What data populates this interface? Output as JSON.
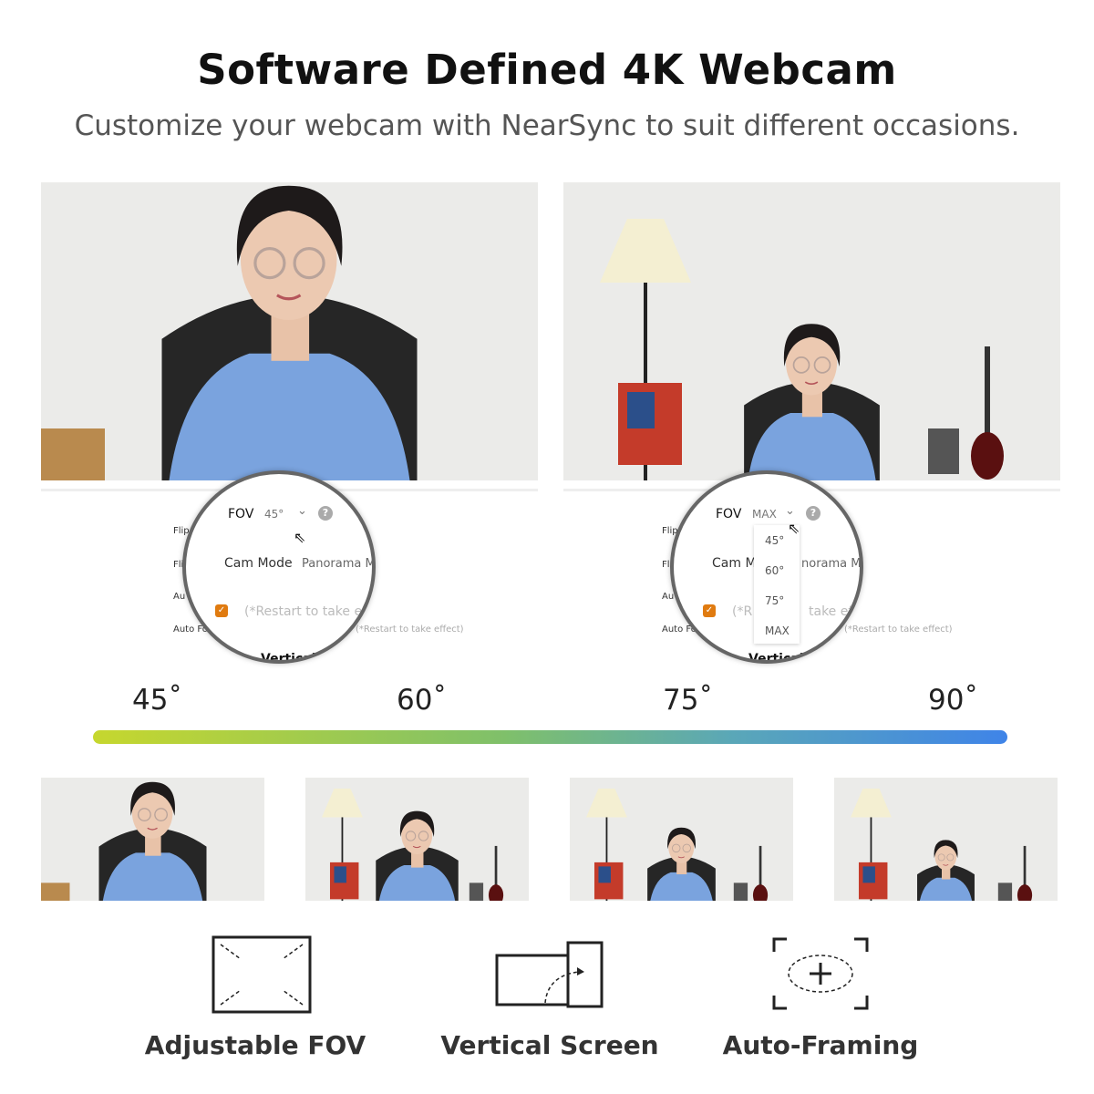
{
  "header": {
    "title": "Software Defined 4K Webcam",
    "subtitle": "Customize your webcam with NearSync to suit different occasions."
  },
  "left_demo": {
    "fov_label": "FOV",
    "fov_value": "45°",
    "cam_mode_label": "Cam Mode",
    "cam_mode_value": "Panorama M",
    "restart_note": "(*Restart to take eff",
    "bg_labels": [
      "Flip",
      "Fli",
      "Au",
      "Auto Fo",
      "(*Restart to take effect)",
      "Vertical"
    ]
  },
  "right_demo": {
    "fov_label": "FOV",
    "fov_value": "MAX",
    "cam_mode_label": "Cam M",
    "cam_mode_value": "norama M",
    "restart_note": "(*R",
    "restart_note2": "take ef",
    "dropdown_options": [
      "45°",
      "60°",
      "75°",
      "MAX"
    ],
    "bg_labels": [
      "Flip",
      "Fli",
      "Au",
      "Auto Fo",
      "(*Restart to take effect)",
      "Vertical"
    ]
  },
  "fov_scale": {
    "labels": [
      "45˚",
      "60˚",
      "75˚",
      "90˚"
    ],
    "gradient_colors": [
      "#c6d72e",
      "#3f84e8"
    ]
  },
  "checkbox_color": "#e07b10",
  "features": [
    {
      "icon": "adjustable-fov-icon",
      "label": "Adjustable FOV"
    },
    {
      "icon": "vertical-screen-icon",
      "label": "Vertical Screen"
    },
    {
      "icon": "auto-framing-icon",
      "label": "Auto-Framing"
    }
  ]
}
